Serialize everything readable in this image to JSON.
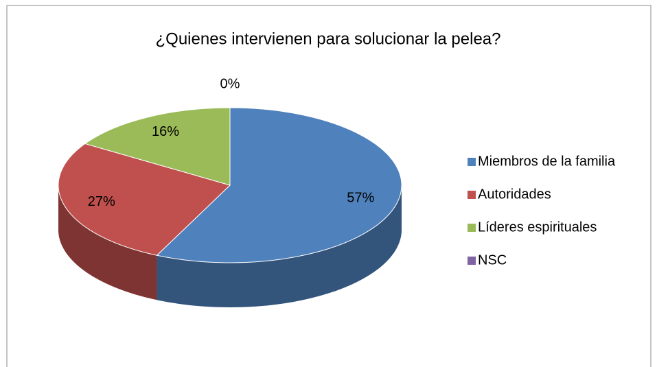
{
  "chart_data": {
    "type": "pie",
    "title": "¿Quienes intervienen para solucionar la pelea?",
    "categories": [
      "Miembros de la familia",
      "Autoridades",
      "Líderes espirituales",
      "NSC"
    ],
    "values": [
      57,
      27,
      16,
      0
    ],
    "value_labels": [
      "57%",
      "27%",
      "16%",
      "0%"
    ],
    "colors": [
      "#4f81bd",
      "#c0504d",
      "#9bbb59",
      "#8064a2"
    ],
    "legend": "right",
    "3d": true
  }
}
